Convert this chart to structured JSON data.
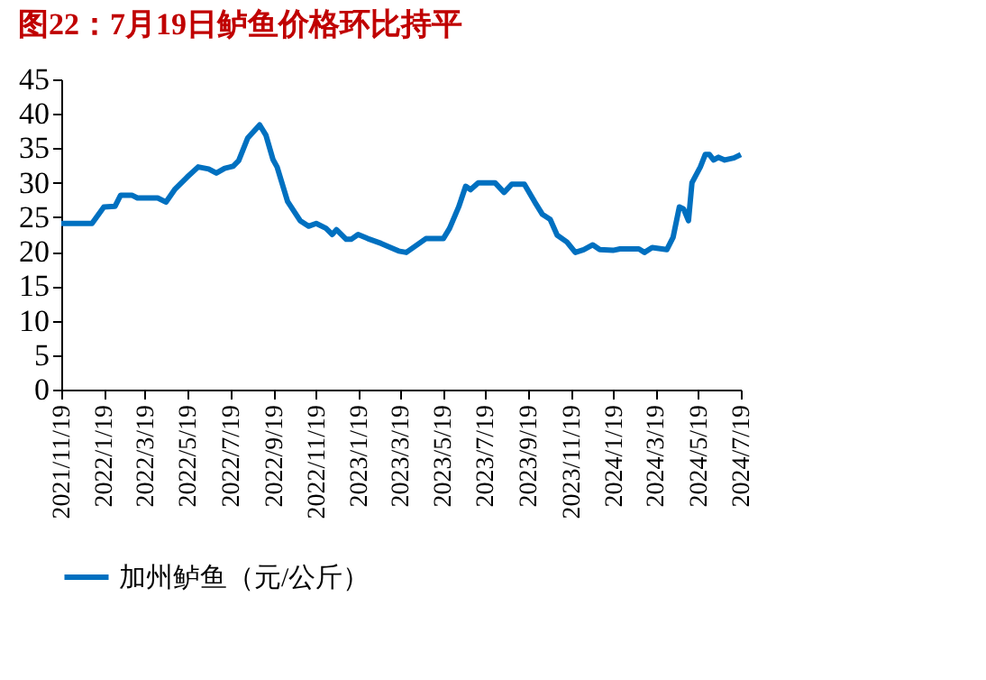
{
  "chart_data": {
    "type": "line",
    "title": "图22：7月19日鲈鱼价格环比持平",
    "x": [
      "2021-11-19",
      "2022-01-02",
      "2022-01-19",
      "2022-02-04",
      "2022-02-12",
      "2022-02-28",
      "2022-03-08",
      "2022-04-06",
      "2022-04-18",
      "2022-05-01",
      "2022-05-18",
      "2022-06-03",
      "2022-06-18",
      "2022-06-29",
      "2022-07-11",
      "2022-07-23",
      "2022-07-31",
      "2022-08-13",
      "2022-08-30",
      "2022-09-08",
      "2022-09-18",
      "2022-09-24",
      "2022-10-09",
      "2022-10-27",
      "2022-11-08",
      "2022-11-19",
      "2022-12-03",
      "2022-12-12",
      "2022-12-18",
      "2023-01-01",
      "2023-01-08",
      "2023-01-18",
      "2023-02-01",
      "2023-02-20",
      "2023-03-01",
      "2023-03-17",
      "2023-03-28",
      "2023-04-25",
      "2023-05-20",
      "2023-05-29",
      "2023-06-11",
      "2023-06-21",
      "2023-06-28",
      "2023-07-09",
      "2023-08-02",
      "2023-08-15",
      "2023-08-26",
      "2023-09-13",
      "2023-09-28",
      "2023-10-09",
      "2023-10-20",
      "2023-10-30",
      "2023-11-13",
      "2023-11-25",
      "2023-12-07",
      "2023-12-20",
      "2023-12-30",
      "2024-01-18",
      "2024-01-28",
      "2024-02-24",
      "2024-03-03",
      "2024-03-14",
      "2024-04-04",
      "2024-04-13",
      "2024-04-22",
      "2024-04-28",
      "2024-05-05",
      "2024-05-10",
      "2024-05-22",
      "2024-05-29",
      "2024-06-04",
      "2024-06-10",
      "2024-06-17",
      "2024-06-26",
      "2024-07-09",
      "2024-07-19"
    ],
    "series": [
      {
        "name": "加州鲈鱼（元/公斤）",
        "color": "#0070c0",
        "values": [
          24.1,
          24.1,
          26.5,
          26.6,
          28.2,
          28.2,
          27.8,
          27.8,
          27.2,
          29.1,
          30.8,
          32.3,
          32.0,
          31.4,
          32.1,
          32.4,
          33.2,
          36.5,
          38.4,
          36.9,
          33.4,
          32.3,
          27.3,
          24.5,
          23.7,
          24.1,
          23.4,
          22.5,
          23.2,
          21.8,
          21.8,
          22.5,
          21.9,
          21.2,
          20.8,
          20.1,
          19.9,
          21.9,
          21.9,
          23.4,
          26.5,
          29.5,
          29.0,
          30.0,
          30.0,
          28.6,
          29.8,
          29.8,
          27.2,
          25.4,
          24.7,
          22.4,
          21.4,
          19.9,
          20.3,
          21.0,
          20.3,
          20.2,
          20.4,
          20.4,
          19.9,
          20.6,
          20.3,
          22.1,
          26.5,
          26.2,
          24.5,
          30.0,
          32.3,
          34.1,
          34.1,
          33.3,
          33.7,
          33.3,
          33.6,
          34.1
        ]
      }
    ],
    "xlim": [
      "2021-11-19",
      "2024-07-19"
    ],
    "xticks": [
      {
        "value": "2021-11-19",
        "label": "2021/11/19"
      },
      {
        "value": "2022-01-19",
        "label": "2022/1/19"
      },
      {
        "value": "2022-03-19",
        "label": "2022/3/19"
      },
      {
        "value": "2022-05-19",
        "label": "2022/5/19"
      },
      {
        "value": "2022-07-19",
        "label": "2022/7/19"
      },
      {
        "value": "2022-09-19",
        "label": "2022/9/19"
      },
      {
        "value": "2022-11-19",
        "label": "2022/11/19"
      },
      {
        "value": "2023-01-19",
        "label": "2023/1/19"
      },
      {
        "value": "2023-03-19",
        "label": "2023/3/19"
      },
      {
        "value": "2023-05-19",
        "label": "2023/5/19"
      },
      {
        "value": "2023-07-19",
        "label": "2023/7/19"
      },
      {
        "value": "2023-09-19",
        "label": "2023/9/19"
      },
      {
        "value": "2023-11-19",
        "label": "2023/11/19"
      },
      {
        "value": "2024-01-19",
        "label": "2024/1/19"
      },
      {
        "value": "2024-03-19",
        "label": "2024/3/19"
      },
      {
        "value": "2024-05-19",
        "label": "2024/5/19"
      },
      {
        "value": "2024-07-19",
        "label": "2024/7/19"
      }
    ],
    "ylim": [
      0,
      45
    ],
    "yticks": [
      0,
      5,
      10,
      15,
      20,
      25,
      30,
      35,
      40,
      45
    ],
    "grid": false,
    "legend": "bottom",
    "line_style": "solid",
    "marker": "none"
  }
}
